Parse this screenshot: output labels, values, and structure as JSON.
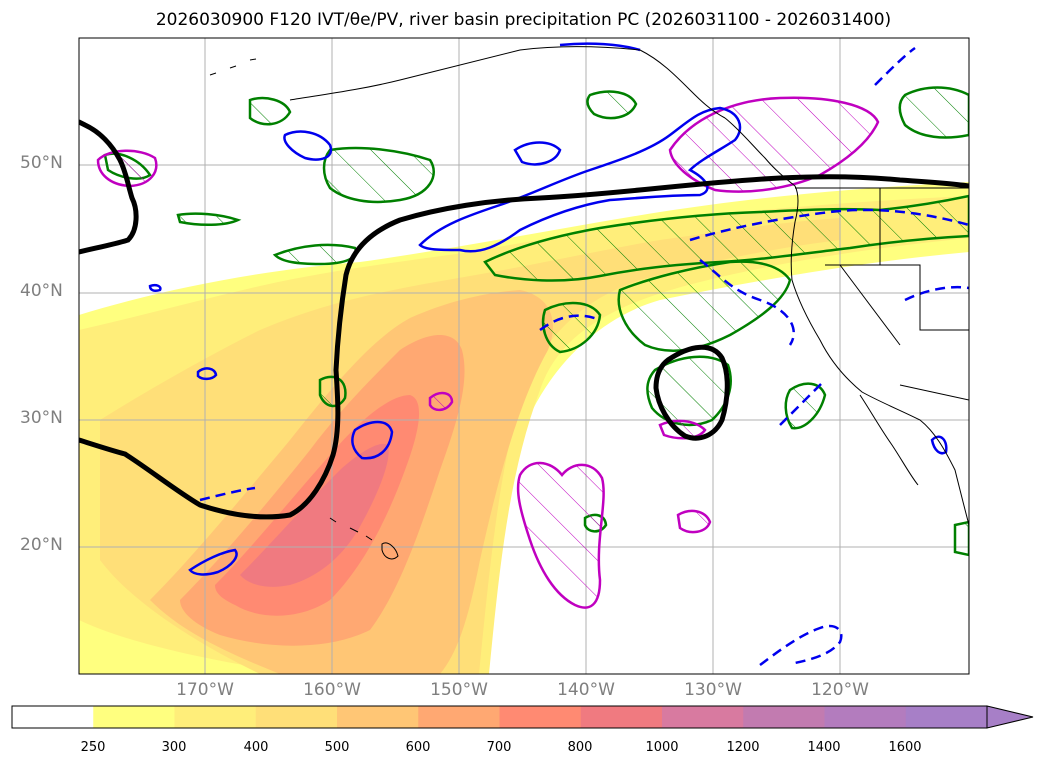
{
  "title": "2026030900 F120 IVT/θe/PV, river basin precipitation PC (2026031100 - 2026031400)",
  "map": {
    "lat_labels": [
      {
        "text": "50°N",
        "lat": 50
      },
      {
        "text": "40°N",
        "lat": 40
      },
      {
        "text": "30°N",
        "lat": 30
      },
      {
        "text": "20°N",
        "lat": 20
      }
    ],
    "lon_labels": [
      {
        "text": "170°W",
        "lon": -170
      },
      {
        "text": "160°W",
        "lon": -160
      },
      {
        "text": "150°W",
        "lon": -150
      },
      {
        "text": "140°W",
        "lon": -140
      },
      {
        "text": "130°W",
        "lon": -130
      },
      {
        "text": "120°W",
        "lon": -120
      }
    ],
    "lon_range": [
      -180,
      -110
    ],
    "lat_range": [
      10,
      60
    ],
    "colors": {
      "ivt_fill": [
        "#ffff7f",
        "#ffee7a",
        "#ffdf78",
        "#ffc675",
        "#ffa872",
        "#ff8a72",
        "#f07a80",
        "#d87aa0",
        "#b87ab8",
        "#a77fc7"
      ],
      "theta_e": "#000000",
      "pv_positive": "#0000ee",
      "precip_green": "#008000",
      "precip_magenta": "#c000c0",
      "coast": "#000000",
      "grid": "#b0b0b0"
    }
  },
  "colorbar": {
    "labels": [
      "250",
      "300",
      "400",
      "500",
      "600",
      "700",
      "800",
      "1000",
      "1200",
      "1400",
      "1600"
    ],
    "colors": [
      "#ffffff",
      "#ffff7f",
      "#ffee7a",
      "#ffdf78",
      "#ffc675",
      "#ffa872",
      "#ff8a72",
      "#f07a80",
      "#d87aa0",
      "#c27bb0",
      "#b37cbe",
      "#a77fc7"
    ]
  }
}
